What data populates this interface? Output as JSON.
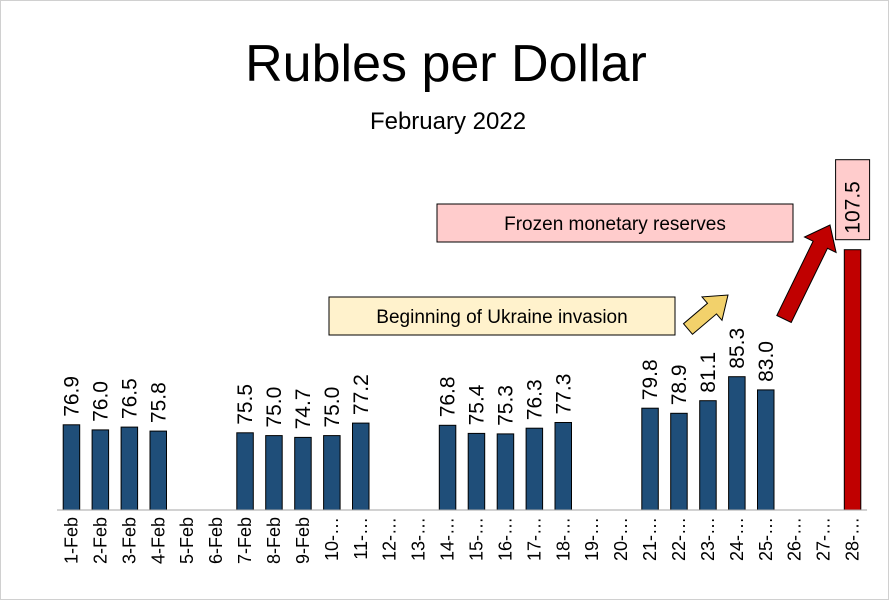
{
  "chart_data": {
    "type": "bar",
    "title": "Rubles per Dollar",
    "subtitle": "February 2022",
    "categories": [
      "1-Feb",
      "2-Feb",
      "3-Feb",
      "4-Feb",
      "5-Feb",
      "6-Feb",
      "7-Feb",
      "8-Feb",
      "9-Feb",
      "10-…",
      "11-…",
      "12-…",
      "13-…",
      "14-…",
      "15-…",
      "16-…",
      "17-…",
      "18-…",
      "19-…",
      "20-…",
      "21-…",
      "22-…",
      "23-…",
      "24-…",
      "25-…",
      "26-…",
      "27-…",
      "28-…"
    ],
    "values": [
      76.9,
      76.0,
      76.5,
      75.8,
      null,
      null,
      75.5,
      75.0,
      74.7,
      75.0,
      77.2,
      null,
      null,
      76.8,
      75.4,
      75.3,
      76.3,
      77.3,
      null,
      null,
      79.8,
      78.9,
      81.1,
      85.3,
      83.0,
      null,
      null,
      107.5
    ],
    "value_labels": [
      "76.9",
      "76.0",
      "76.5",
      "75.8",
      "",
      "",
      "75.5",
      "75.0",
      "74.7",
      "75.0",
      "77.2",
      "",
      "",
      "76.8",
      "75.4",
      "75.3",
      "76.3",
      "77.3",
      "",
      "",
      "79.8",
      "78.9",
      "81.1",
      "85.3",
      "83.0",
      "",
      "",
      "107.5"
    ],
    "ylim": [
      62,
      111
    ],
    "bar_color": "#1f4e79",
    "highlight_index": 27,
    "highlight_color": "#c00000",
    "highlight_label_fill": "#ffcccc",
    "annotations": [
      {
        "text": "Beginning of Ukraine invasion",
        "fill": "#fff2cc",
        "arrow_color": "#f2d16b",
        "target_index": 23
      },
      {
        "text": "Frozen monetary reserves",
        "fill": "#ffcccc",
        "arrow_color": "#c00000",
        "target_index": 27
      }
    ],
    "grid": false,
    "legend": "none"
  }
}
